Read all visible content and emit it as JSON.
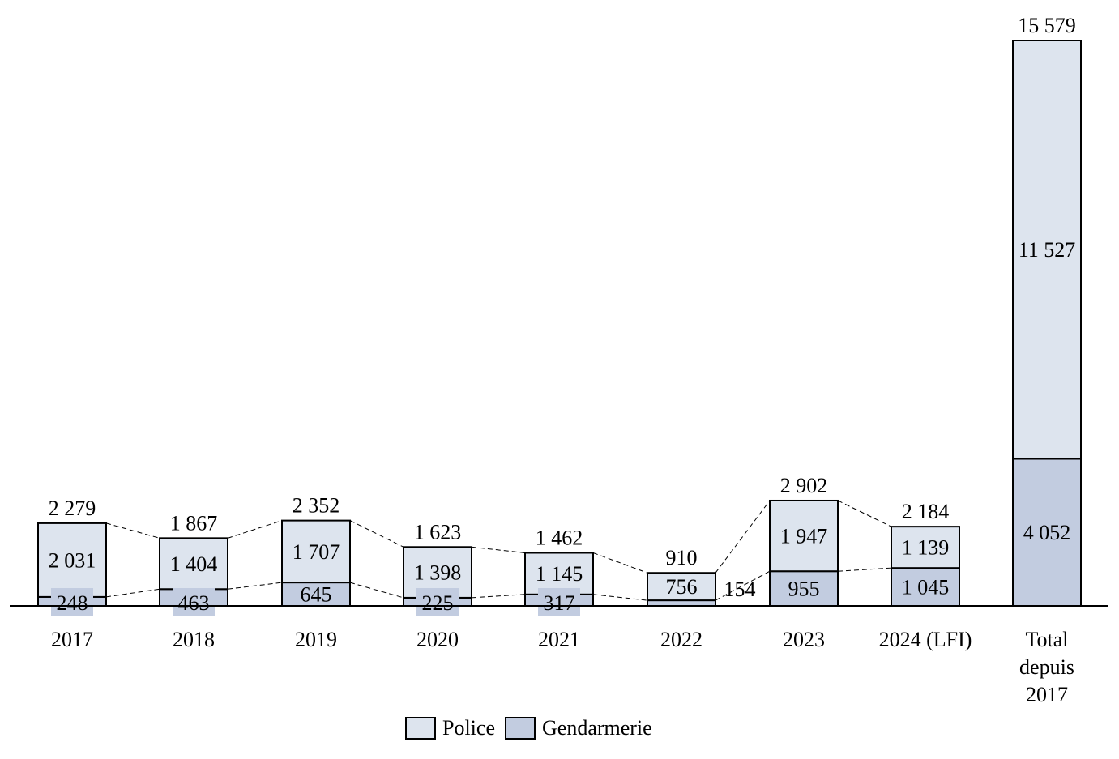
{
  "chart_data": {
    "type": "bar",
    "stacked": true,
    "categories": [
      "2017",
      "2018",
      "2019",
      "2020",
      "2021",
      "2022",
      "2023",
      "2024 (LFI)",
      "Total depuis 2017"
    ],
    "series": [
      {
        "name": "Gendarmerie",
        "values": [
          248,
          463,
          645,
          225,
          317,
          154,
          955,
          1045,
          4052
        ],
        "labels": [
          "248",
          "463",
          "645",
          "225",
          "317",
          "154",
          "955",
          "1 045",
          "4 052"
        ],
        "color": "#c2cce0"
      },
      {
        "name": "Police",
        "values": [
          2031,
          1404,
          1707,
          1398,
          1145,
          756,
          1947,
          1139,
          11527
        ],
        "labels": [
          "2 031",
          "1 404",
          "1 707",
          "1 398",
          "1 145",
          "756",
          "1 947",
          "1 139",
          "11 527"
        ],
        "color": "#dde4ee"
      }
    ],
    "totals": [
      2279,
      1867,
      2352,
      1623,
      1462,
      910,
      2902,
      2184,
      15579
    ],
    "total_labels": [
      "2 279",
      "1 867",
      "2 352",
      "1 623",
      "1 462",
      "910",
      "2 902",
      "2 184",
      "15 579"
    ],
    "ylim": [
      0,
      15579
    ],
    "grid": false,
    "legend": "bottom",
    "connector_lines": "dashed"
  }
}
